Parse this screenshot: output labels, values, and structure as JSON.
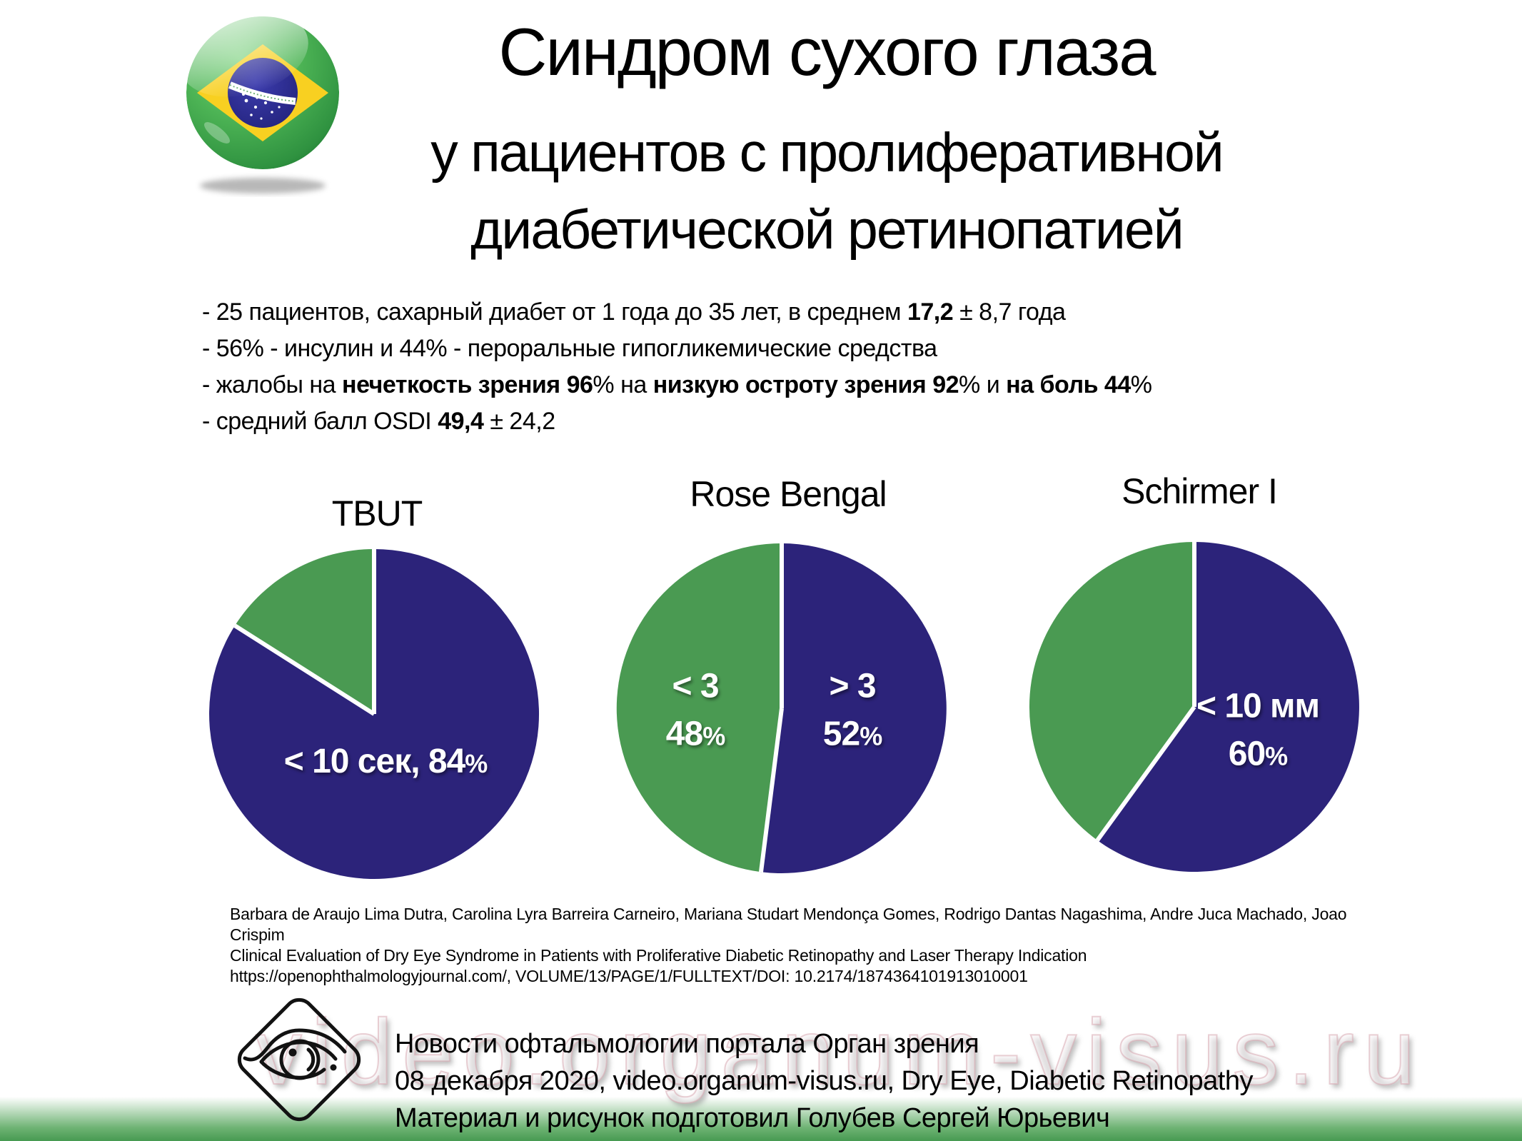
{
  "colors": {
    "navy": "#2c237a",
    "green": "#4a9a52",
    "footer_gradient_green": "#479a51",
    "label_text": "#ffffff",
    "flag_green": "#3fa84c",
    "flag_yellow": "#f8d021",
    "flag_blue": "#28288a"
  },
  "icons": {
    "flag": "brazil-flag-sphere-icon",
    "logo": "eye-diamond-logo-icon"
  },
  "header": {
    "title": "Синдром сухого глаза",
    "subtitle_line1": "у пациентов с пролиферативной",
    "subtitle_line2": "диабетической ретинопатией"
  },
  "bullets": {
    "b1": {
      "pre": "- 25 пациентов, сахарный диабет от 1 года до 35 лет, в среднем ",
      "bold": "17,2",
      "post": " ± 8,7 года"
    },
    "b2": {
      "text": "- 56% - инсулин и 44% - пероральные гипогликемические средства"
    },
    "b3": {
      "s1": "- жалобы на ",
      "bold1": "нечеткость зрения 96",
      "s2": "% на ",
      "bold2": "низкую остроту зрения 92",
      "s3": "% и ",
      "bold3": "на боль 44",
      "s4": "%"
    },
    "b4": {
      "pre": "- средний балл OSDI  ",
      "bold": "49,4",
      "post": " ± 24,2"
    }
  },
  "chart_data": [
    {
      "type": "pie",
      "title": "TBUT",
      "start_angle_deg": 0,
      "direction": "clockwise",
      "slices": [
        {
          "label": "< 10 сек",
          "value_pct": 84,
          "color": "#2c237a",
          "label_color": "#ffffff"
        },
        {
          "label": "",
          "value_pct": 16,
          "color": "#4a9a52"
        }
      ]
    },
    {
      "type": "pie",
      "title": "Rose Bengal",
      "start_angle_deg": 0,
      "direction": "clockwise",
      "slices": [
        {
          "label": "> 3",
          "value_pct": 52,
          "color": "#2c237a",
          "label_color": "#ffffff"
        },
        {
          "label": "< 3",
          "value_pct": 48,
          "color": "#4a9a52",
          "label_color": "#ffffff"
        }
      ]
    },
    {
      "type": "pie",
      "title": "Schirmer I",
      "start_angle_deg": 0,
      "direction": "clockwise",
      "slices": [
        {
          "label": "< 10 мм",
          "value_pct": 60,
          "color": "#2c237a",
          "label_color": "#ffffff"
        },
        {
          "label": "",
          "value_pct": 40,
          "color": "#4a9a52"
        }
      ]
    }
  ],
  "pie_labels": {
    "tbut_line": "< 10 сек, 84",
    "tbut_pct": "%",
    "rose_left_line1": "< 3",
    "rose_left_num": "48",
    "rose_left_pct": "%",
    "rose_right_line1": "> 3",
    "rose_right_num": "52",
    "rose_right_pct": "%",
    "schirmer_line1": "< 10 мм",
    "schirmer_num": "60",
    "schirmer_pct": "%"
  },
  "citation": {
    "authors": "Barbara de Araujo Lima Dutra, Carolina Lyra Barreira Carneiro, Mariana Studart Mendonça Gomes, Rodrigo Dantas Nagashima, Andre Juca Machado, Joao Crispim",
    "paper_title": "Clinical Evaluation of Dry Eye Syndrome in Patients with Proliferative Diabetic Retinopathy and Laser Therapy Indication",
    "source": "https://openophthalmologyjournal.com/, VOLUME/13/PAGE/1/FULLTEXT/DOI: 10.2174/1874364101913010001"
  },
  "footer": {
    "line1": "Новости офтальмологии портала Орган зрения",
    "line2": "08 декабря 2020, video.organum-visus.ru, Dry Eye, Diabetic Retinopathy",
    "line3": "Материал и рисунок подготовил Голубев Сергей Юрьевич"
  },
  "watermark": "video.organum-visus.ru"
}
